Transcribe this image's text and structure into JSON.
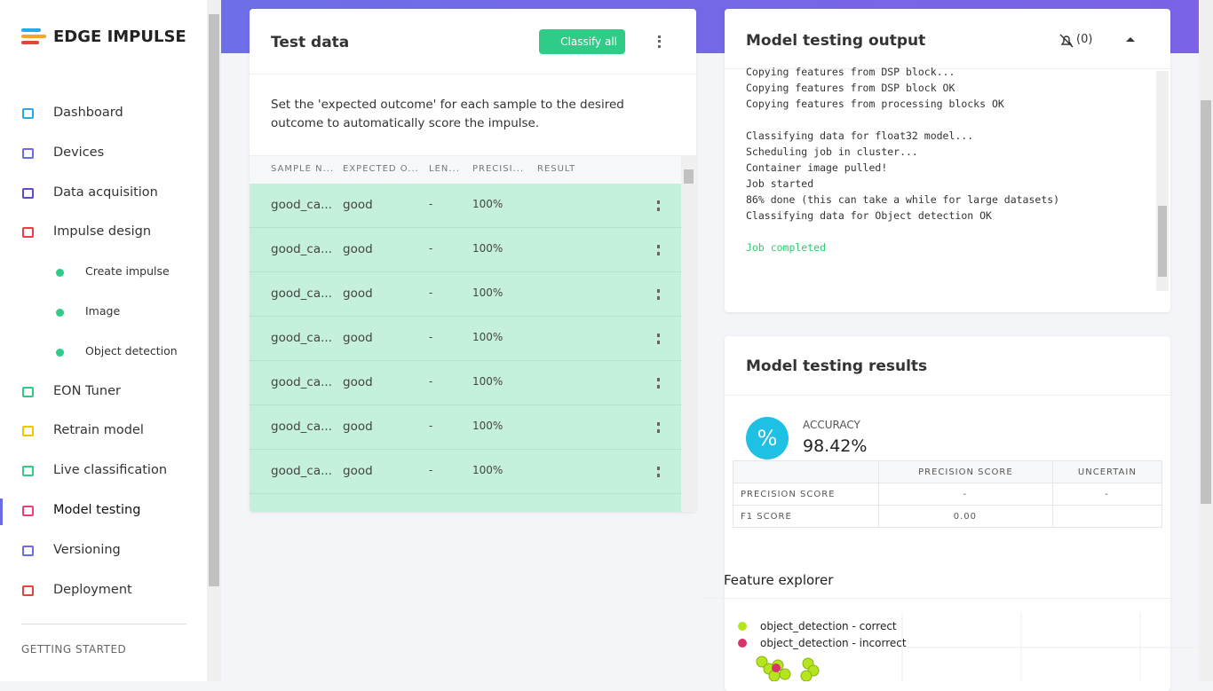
{
  "sidebar": {
    "brand": "EDGE IMPULSE",
    "nav": [
      {
        "label": "Dashboard"
      },
      {
        "label": "Devices"
      },
      {
        "label": "Data acquisition"
      },
      {
        "label": "Impulse design"
      },
      {
        "label": "Create impulse",
        "sub": true
      },
      {
        "label": "Image",
        "sub": true
      },
      {
        "label": "Object detection",
        "sub": true
      },
      {
        "label": "EON Tuner"
      },
      {
        "label": "Retrain model"
      },
      {
        "label": "Live classification"
      },
      {
        "label": "Model testing",
        "active": true
      },
      {
        "label": "Versioning"
      },
      {
        "label": "Deployment"
      }
    ],
    "section": "GETTING STARTED"
  },
  "test_data": {
    "title": "Test data",
    "button": "Classify all",
    "description": "Set the 'expected outcome' for each sample to the desired outcome to automatically score the impulse.",
    "columns": [
      "SAMPLE N...",
      "EXPECTED O...",
      "LEN...",
      "PRECISI...",
      "RESULT"
    ],
    "rows": [
      [
        "good_ca...",
        "good",
        "-",
        "100%"
      ],
      [
        "good_ca...",
        "good",
        "-",
        "100%"
      ],
      [
        "good_ca...",
        "good",
        "-",
        "100%"
      ],
      [
        "good_ca...",
        "good",
        "-",
        "100%"
      ],
      [
        "good_ca...",
        "good",
        "-",
        "100%"
      ],
      [
        "good_ca...",
        "good",
        "-",
        "100%"
      ],
      [
        "good_ca...",
        "good",
        "-",
        "100%"
      ]
    ]
  },
  "output": {
    "title": "Model testing output",
    "notifications": "(0)",
    "log": [
      [
        "Copying features from DSP block...",
        "Copying features from DSP block OK",
        "Copying features from processing blocks OK"
      ],
      [
        "Classifying data for float32 model...",
        "Scheduling job in cluster...",
        "Container image pulled!",
        "Job started",
        "86% done (this can take a while for large datasets)",
        "Classifying data for Object detection OK"
      ]
    ],
    "status": "Job completed"
  },
  "results": {
    "title": "Model testing results",
    "accuracy_label": "ACCURACY",
    "accuracy": "98.42%",
    "table": {
      "header": [
        "PRECISION SCORE",
        "UNCERTAIN"
      ],
      "rows": [
        [
          "PRECISION SCORE",
          "-",
          "-"
        ],
        [
          "F1 SCORE",
          "0.00"
        ]
      ]
    }
  },
  "feature_explorer": {
    "title": "Feature explorer",
    "legend": [
      "object_detection - correct",
      "object_detection - incorrect"
    ]
  }
}
